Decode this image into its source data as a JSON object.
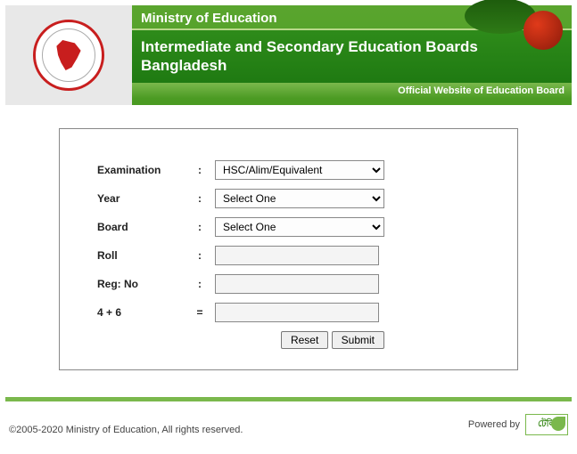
{
  "header": {
    "ministry": "Ministry of Education",
    "title": "Intermediate and Secondary Education Boards Bangladesh",
    "subtitle": "Official Website of Education Board"
  },
  "form": {
    "fields": {
      "examination": {
        "label": "Examination",
        "sep": ":",
        "selected": "HSC/Alim/Equivalent"
      },
      "year": {
        "label": "Year",
        "sep": ":",
        "selected": "Select One"
      },
      "board": {
        "label": "Board",
        "sep": ":",
        "selected": "Select One"
      },
      "roll": {
        "label": "Roll",
        "sep": ":",
        "value": ""
      },
      "regno": {
        "label": "Reg: No",
        "sep": ":",
        "value": ""
      },
      "captcha": {
        "label": "4 + 6",
        "sep": "=",
        "value": ""
      }
    },
    "buttons": {
      "reset": "Reset",
      "submit": "Submit"
    }
  },
  "footer": {
    "copyright": "©2005-2020 Ministry of Education, All rights reserved.",
    "powered_label": "Powered by"
  },
  "colors": {
    "brand_green_dark": "#1f7a12",
    "brand_green": "#4a9a22",
    "brand_green_light": "#7ab84c",
    "brand_red": "#c81e1e",
    "bg_gray": "#e8e8e8"
  }
}
